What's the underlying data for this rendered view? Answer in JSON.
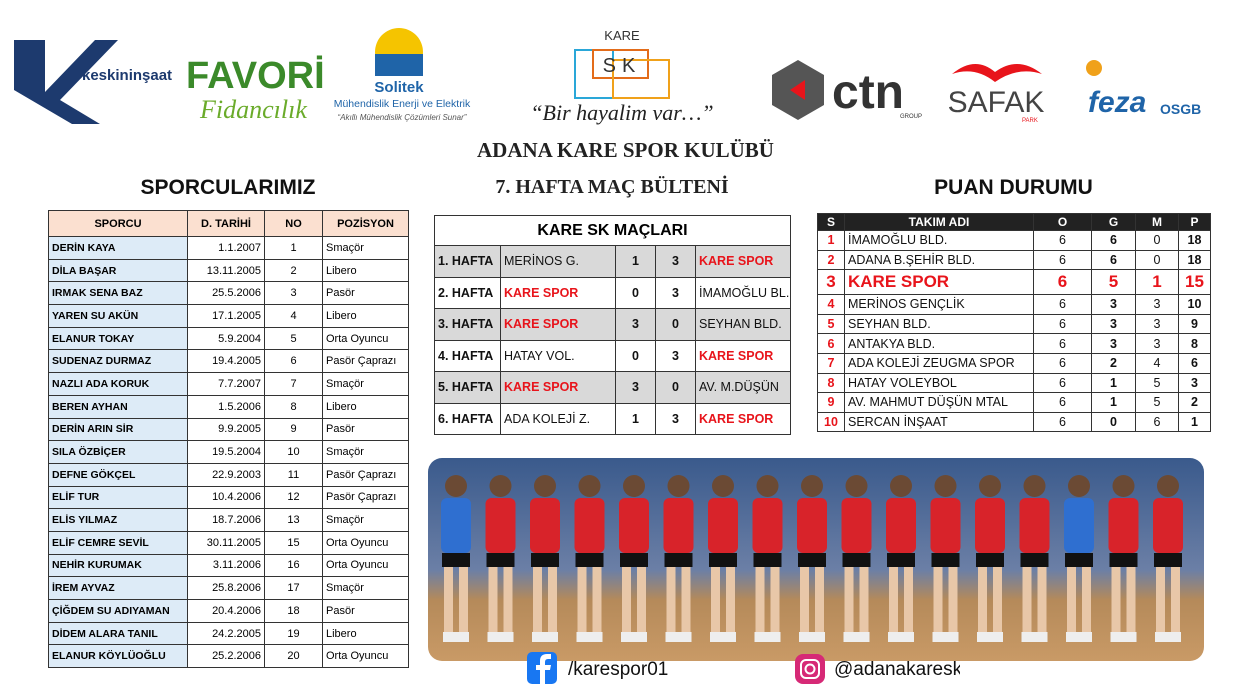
{
  "sponsors": {
    "keskin": "keskininşaat",
    "favori": "FAVORİ",
    "fidancilik": "Fidancılık",
    "solitek": "Solitek",
    "solitek_sub": "Mühendislik Enerji ve Elektrik",
    "solitek_slogan": "“Akıllı Mühendislik Çözümleri Sunar”",
    "kare": "KARE",
    "sk": "SK",
    "kare_slogan": "“Bir hayalim var…”",
    "ctn": "ctn",
    "ctn_sub": "GROUP",
    "safak": "SAFAK",
    "safak_sub": "PARK",
    "feza": "feza",
    "feza_sub": "OSGB"
  },
  "header": {
    "title": "ADANA KARE SPOR KULÜBÜ",
    "subtitle": "7. HAFTA MAÇ BÜLTENİ"
  },
  "players": {
    "title": "SPORCULARIMIZ",
    "headers": [
      "SPORCU",
      "D. TARİHİ",
      "NO",
      "POZİSYON"
    ],
    "rows": [
      [
        "DERİN KAYA",
        "1.1.2007",
        1,
        "Smaçör"
      ],
      [
        "DİLA BAŞAR",
        "13.11.2005",
        2,
        "Libero"
      ],
      [
        "IRMAK SENA BAZ",
        "25.5.2006",
        3,
        "Pasör"
      ],
      [
        "YAREN SU AKÜN",
        "17.1.2005",
        4,
        "Libero"
      ],
      [
        "ELANUR TOKAY",
        "5.9.2004",
        5,
        "Orta Oyuncu"
      ],
      [
        "SUDENAZ DURMAZ",
        "19.4.2005",
        6,
        "Pasör Çaprazı"
      ],
      [
        "NAZLI ADA KORUK",
        "7.7.2007",
        7,
        "Smaçör"
      ],
      [
        "BEREN AYHAN",
        "1.5.2006",
        8,
        "Libero"
      ],
      [
        "DERİN ARIN SİR",
        "9.9.2005",
        9,
        "Pasör"
      ],
      [
        "SILA ÖZBİÇER",
        "19.5.2004",
        10,
        "Smaçör"
      ],
      [
        "DEFNE GÖKÇEL",
        "22.9.2003",
        11,
        "Pasör Çaprazı"
      ],
      [
        "ELİF TUR",
        "10.4.2006",
        12,
        "Pasör Çaprazı"
      ],
      [
        "ELİS YILMAZ",
        "18.7.2006",
        13,
        "Smaçör"
      ],
      [
        "ELİF CEMRE SEVİL",
        "30.11.2005",
        15,
        "Orta Oyuncu"
      ],
      [
        "NEHİR KURUMAK",
        "3.11.2006",
        16,
        "Orta Oyuncu"
      ],
      [
        "İREM AYVAZ",
        "25.8.2006",
        17,
        "Smaçör"
      ],
      [
        "ÇİĞDEM SU ADIYAMAN",
        "20.4.2006",
        18,
        "Pasör"
      ],
      [
        "DİDEM ALARA TANIL",
        "24.2.2005",
        19,
        "Libero"
      ],
      [
        "ELANUR KÖYLÜOĞLU",
        "25.2.2006",
        20,
        "Orta Oyuncu"
      ]
    ]
  },
  "matches": {
    "title": "KARE SK MAÇLARI",
    "rows": [
      [
        "1. HAFTA",
        "MERİNOS G.",
        1,
        3,
        "KARE SPOR"
      ],
      [
        "2. HAFTA",
        "KARE SPOR",
        0,
        3,
        "İMAMOĞLU BL."
      ],
      [
        "3. HAFTA",
        "KARE SPOR",
        3,
        0,
        "SEYHAN BLD."
      ],
      [
        "4. HAFTA",
        "HATAY VOL.",
        0,
        3,
        "KARE SPOR"
      ],
      [
        "5. HAFTA",
        "KARE SPOR",
        3,
        0,
        "AV. M.DÜŞÜN"
      ],
      [
        "6. HAFTA",
        "ADA KOLEJİ Z.",
        1,
        3,
        "KARE SPOR"
      ]
    ]
  },
  "standings": {
    "title": "PUAN DURUMU",
    "highlight_row": 2,
    "highlight_color": "#e8141b",
    "headers": [
      "S",
      "TAKIM ADI",
      "O",
      "G",
      "M",
      "P"
    ],
    "rows": [
      [
        1,
        "İMAMOĞLU BLD.",
        6,
        6,
        0,
        18
      ],
      [
        2,
        "ADANA B.ŞEHİR BLD.",
        6,
        6,
        0,
        18
      ],
      [
        3,
        "KARE SPOR",
        6,
        5,
        1,
        15
      ],
      [
        4,
        "MERİNOS GENÇLİK",
        6,
        3,
        3,
        10
      ],
      [
        5,
        "SEYHAN BLD.",
        6,
        3,
        3,
        9
      ],
      [
        6,
        "ANTAKYA BLD.",
        6,
        3,
        3,
        8
      ],
      [
        7,
        "ADA KOLEJİ ZEUGMA SPOR",
        6,
        2,
        4,
        6
      ],
      [
        8,
        "HATAY VOLEYBOL",
        6,
        1,
        5,
        3
      ],
      [
        9,
        "AV. MAHMUT DÜŞÜN MTAL",
        6,
        1,
        5,
        2
      ],
      [
        10,
        "SERCAN İNŞAAT",
        6,
        0,
        6,
        1
      ]
    ]
  },
  "social": {
    "facebook": "/karespor01",
    "instagram": "@adanakaresk"
  }
}
